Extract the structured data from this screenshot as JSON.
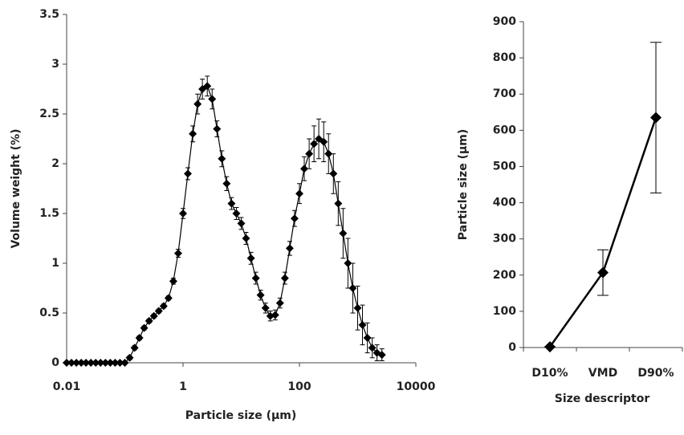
{
  "chart_data": [
    {
      "type": "line",
      "xlabel": "Particle size (µm)",
      "ylabel": "Volume weight (%)",
      "log_x": true,
      "color": "#000000",
      "x": [
        0.01,
        0.0121,
        0.0147,
        0.0178,
        0.0215,
        0.0261,
        0.0316,
        0.0383,
        0.0464,
        0.0562,
        0.0681,
        0.0825,
        0.1,
        0.121,
        0.147,
        0.178,
        0.215,
        0.261,
        0.316,
        0.383,
        0.464,
        0.562,
        0.681,
        0.825,
        1,
        1.21,
        1.47,
        1.78,
        2.15,
        2.61,
        3.16,
        3.83,
        4.64,
        5.62,
        6.81,
        8.25,
        10,
        12.1,
        14.7,
        17.8,
        21.5,
        26.1,
        31.6,
        38.3,
        46.4,
        56.2,
        68.1,
        82.5,
        100,
        121,
        147,
        178,
        215,
        261,
        316,
        383,
        464,
        562,
        681,
        825,
        1000,
        1210,
        1470,
        1780,
        2150,
        2610
      ],
      "values": [
        0,
        0,
        0,
        0,
        0,
        0,
        0,
        0,
        0,
        0,
        0,
        0,
        0,
        0.05,
        0.15,
        0.25,
        0.35,
        0.42,
        0.47,
        0.52,
        0.57,
        0.65,
        0.82,
        1.1,
        1.5,
        1.9,
        2.3,
        2.6,
        2.75,
        2.78,
        2.65,
        2.35,
        2.05,
        1.8,
        1.6,
        1.5,
        1.4,
        1.25,
        1.05,
        0.85,
        0.68,
        0.55,
        0.47,
        0.48,
        0.6,
        0.85,
        1.15,
        1.45,
        1.7,
        1.95,
        2.1,
        2.2,
        2.25,
        2.22,
        2.1,
        1.9,
        1.6,
        1.3,
        1.0,
        0.75,
        0.55,
        0.38,
        0.25,
        0.15,
        0.1,
        0.08
      ],
      "errors": [
        0,
        0,
        0,
        0,
        0,
        0,
        0,
        0,
        0,
        0,
        0,
        0,
        0,
        0.02,
        0.02,
        0.02,
        0.02,
        0.02,
        0.02,
        0.02,
        0.02,
        0.02,
        0.03,
        0.04,
        0.05,
        0.06,
        0.08,
        0.1,
        0.1,
        0.1,
        0.1,
        0.08,
        0.08,
        0.07,
        0.06,
        0.06,
        0.06,
        0.06,
        0.06,
        0.06,
        0.05,
        0.05,
        0.05,
        0.05,
        0.05,
        0.06,
        0.07,
        0.08,
        0.1,
        0.12,
        0.15,
        0.18,
        0.2,
        0.2,
        0.2,
        0.2,
        0.22,
        0.25,
        0.25,
        0.25,
        0.22,
        0.2,
        0.15,
        0.1,
        0.08,
        0.06
      ],
      "xlim": [
        0.01,
        10000
      ],
      "xticks": [
        0.01,
        1,
        100,
        10000
      ],
      "ylim": [
        0,
        3.5
      ],
      "yticks": [
        0,
        0.5,
        1,
        1.5,
        2,
        2.5,
        3,
        3.5
      ]
    },
    {
      "type": "line",
      "xlabel": "Size descriptor",
      "ylabel": "Particle size (µm)",
      "color": "#000000",
      "categories": [
        "D10%",
        "VMD",
        "D90%"
      ],
      "values": [
        2,
        207,
        635
      ],
      "errors": [
        0,
        63,
        208
      ],
      "ylim": [
        0,
        900
      ],
      "yticks": [
        0,
        100,
        200,
        300,
        400,
        500,
        600,
        700,
        800,
        900
      ]
    }
  ]
}
